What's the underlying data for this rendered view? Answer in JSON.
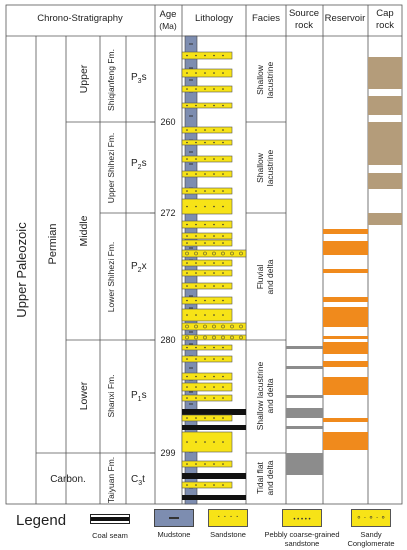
{
  "header": {
    "chrono": "Chrono-Stratigraphy",
    "age": "Age",
    "age_unit": "(Ma)",
    "lithology": "Lithology",
    "facies": "Facies",
    "source": "Source",
    "source2": "rock",
    "reservoir": "Reservoir",
    "cap": "Cap",
    "cap2": "rock"
  },
  "erathem": "Upper Paleozoic",
  "systems": [
    "Permian",
    "Carbon."
  ],
  "series": [
    "Upper",
    "Middle",
    "Lower"
  ],
  "formations": [
    "Shiqianfeng Fm.",
    "Upper Shihezi Fm.",
    "Lower Shihezi Fm.",
    "Shanxi Fm.",
    "Taiyuan Fm."
  ],
  "codes": [
    {
      "main": "P",
      "sub": "3",
      "suf": "s"
    },
    {
      "main": "P",
      "sub": "2",
      "suf": "s"
    },
    {
      "main": "P",
      "sub": "2",
      "suf": "x"
    },
    {
      "main": "P",
      "sub": "1",
      "suf": "s"
    },
    {
      "main": "C",
      "sub": "3",
      "suf": "t"
    }
  ],
  "ages": [
    "260",
    "272",
    "280",
    "299"
  ],
  "facies": [
    [
      "Shallow",
      "lacustrine"
    ],
    [
      "Shallow",
      "lacustrine"
    ],
    [
      "Fluvial",
      "and delta"
    ],
    [
      "Shallow lacustrine",
      "and delta"
    ],
    [
      "Tidal flat",
      "and delta"
    ]
  ],
  "legend": {
    "title": "Legend",
    "items": [
      {
        "label": "Coal seam",
        "swatch": "coal"
      },
      {
        "label": "Mudstone",
        "swatch": "mud"
      },
      {
        "label": "Sandstone",
        "swatch": "sand"
      },
      {
        "label": "Pebbly coarse-grained sandstone",
        "swatch": "pebbly"
      },
      {
        "label": "Sandy Conglomerate",
        "swatch": "sandy"
      }
    ]
  },
  "colors": {
    "mudstone": "#7d8db0",
    "sandstone": "#f7e317",
    "coal": "#111111",
    "source_rock": "#8c8c8c",
    "reservoir": "#f08a1c",
    "cap_rock": "#b49c7a",
    "border": "#555555"
  }
}
